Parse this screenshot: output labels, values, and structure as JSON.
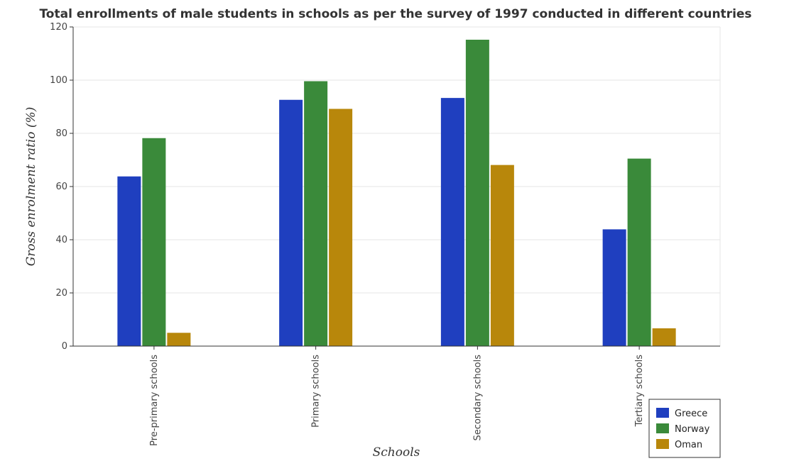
{
  "chart_data": {
    "type": "bar",
    "title": "Total enrollments of male students in schools as per the survey of 1997 conducted in different countries",
    "xlabel": "Schools",
    "ylabel": "Gross enrolment ratio (%)",
    "categories": [
      "Pre-primary schools",
      "Primary schools",
      "Secondary schools",
      "Tertiary schools"
    ],
    "ylim": [
      0,
      120
    ],
    "yticks": [
      0,
      20,
      40,
      60,
      80,
      100,
      120
    ],
    "grid": true,
    "legend_position": "bottom-right",
    "series": [
      {
        "name": "Greece",
        "color": "#1f3fbf",
        "values": [
          63.8,
          92.6,
          93.3,
          43.9
        ]
      },
      {
        "name": "Norway",
        "color": "#3a8a3a",
        "values": [
          78.2,
          99.6,
          115.2,
          70.5
        ]
      },
      {
        "name": "Oman",
        "color": "#b8870b",
        "values": [
          5.0,
          89.2,
          68.1,
          6.7
        ]
      }
    ]
  }
}
